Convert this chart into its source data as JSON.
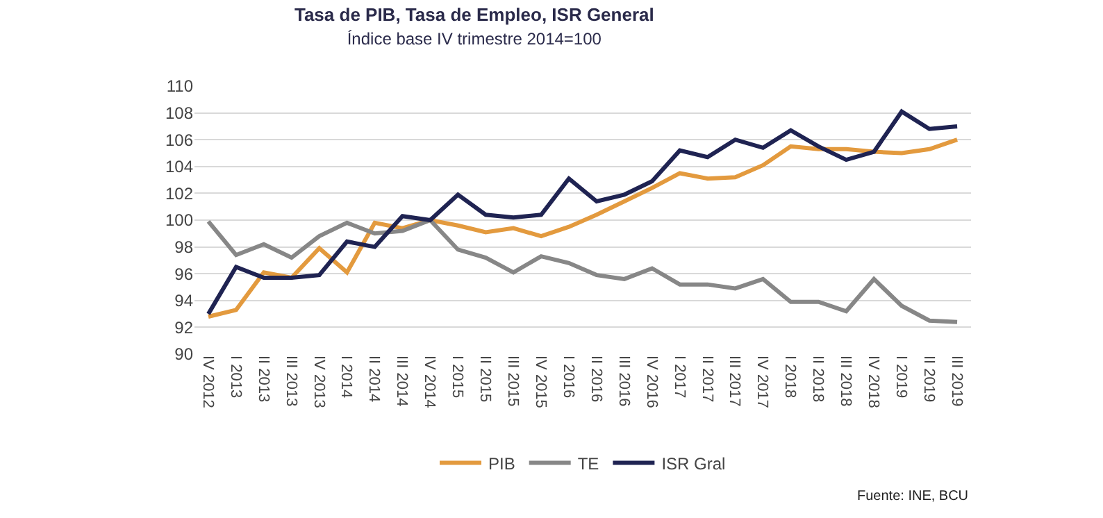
{
  "chart_data": {
    "type": "line",
    "title": "Tasa de PIB, Tasa de Empleo, ISR General",
    "subtitle": "Índice base IV trimestre 2014=100",
    "categories": [
      "IV 2012",
      "I 2013",
      "II 2013",
      "III 2013",
      "IV 2013",
      "I 2014",
      "II 2014",
      "III 2014",
      "IV 2014",
      "I 2015",
      "II 2015",
      "III 2015",
      "IV 2015",
      "I 2016",
      "II 2016",
      "III 2016",
      "IV 2016",
      "I 2017",
      "II 2017",
      "III 2017",
      "IV 2017",
      "I 2018",
      "II 2018",
      "III 2018",
      "IV 2018",
      "I 2019",
      "II 2019",
      "III 2019"
    ],
    "series": [
      {
        "name": "PIB",
        "color": "#e39a3e",
        "values": [
          92.8,
          93.3,
          96.1,
          95.7,
          97.9,
          96.1,
          99.8,
          99.4,
          100,
          99.6,
          99.1,
          99.4,
          98.8,
          99.5,
          100.4,
          101.4,
          102.4,
          103.5,
          103.1,
          103.2,
          104.1,
          105.5,
          105.3,
          105.3,
          105.1,
          105.0,
          105.3,
          106.0
        ]
      },
      {
        "name": "TE",
        "color": "#878787",
        "values": [
          99.9,
          97.4,
          98.2,
          97.2,
          98.8,
          99.8,
          99.0,
          99.2,
          100,
          97.8,
          97.2,
          96.1,
          97.3,
          96.8,
          95.9,
          95.6,
          96.4,
          95.2,
          95.2,
          94.9,
          95.6,
          93.9,
          93.9,
          93.2,
          95.6,
          93.6,
          92.5,
          92.4
        ]
      },
      {
        "name": "ISR Gral",
        "color": "#1f2352",
        "values": [
          93.0,
          96.5,
          95.7,
          95.7,
          95.9,
          98.4,
          98.0,
          100.3,
          100.0,
          101.9,
          100.4,
          100.2,
          100.4,
          103.1,
          101.4,
          101.9,
          102.9,
          105.2,
          104.7,
          106.0,
          105.4,
          106.7,
          105.5,
          104.5,
          105.1,
          108.1,
          106.8,
          107.0
        ]
      }
    ],
    "ylim": [
      90,
      110
    ],
    "yticks": [
      90,
      92,
      94,
      96,
      98,
      100,
      102,
      104,
      106,
      108,
      110
    ],
    "grid": "y",
    "legend": "bottom",
    "marker": "none",
    "line_style": "solid",
    "annotations": [
      "Fuente: INE, BCU"
    ]
  }
}
